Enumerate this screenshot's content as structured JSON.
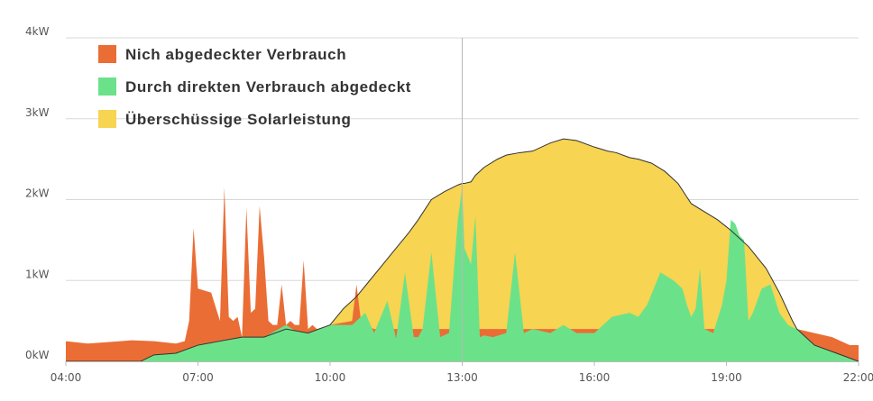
{
  "chart_data": {
    "type": "area",
    "title": "",
    "xlabel": "",
    "ylabel": "",
    "x_ticks": [
      "04:00",
      "07:00",
      "10:00",
      "13:00",
      "16:00",
      "19:00",
      "22:00"
    ],
    "x_range": [
      4,
      22
    ],
    "y_ticks": [
      "0kW",
      "1kW",
      "2kW",
      "3kW",
      "4kW"
    ],
    "ylim": [
      0,
      4
    ],
    "y_unit": "kW",
    "grid": true,
    "cursor_x": 13.0,
    "legend": {
      "position": "top-left"
    },
    "colors": {
      "uncovered": "#ea6d35",
      "direct": "#6be28a",
      "surplus": "#f7d451",
      "solar_line": "#333333",
      "grid": "#d8d8d8",
      "axis": "#bbbbbb"
    },
    "series": [
      {
        "name": "Nich abgedeckter Verbrauch",
        "key": "uncovered",
        "color": "#ea6d35",
        "x": [
          4.0,
          4.5,
          5.0,
          5.5,
          6.0,
          6.5,
          6.7,
          6.8,
          6.9,
          7.0,
          7.3,
          7.5,
          7.6,
          7.7,
          7.8,
          7.9,
          8.0,
          8.1,
          8.2,
          8.3,
          8.4,
          8.5,
          8.6,
          8.7,
          8.8,
          8.9,
          9.0,
          9.1,
          9.2,
          9.3,
          9.4,
          9.5,
          9.6,
          9.7,
          10.0,
          10.5,
          10.6,
          10.7,
          10.8,
          11.0,
          20.6,
          21.0,
          21.4,
          21.8,
          22.0
        ],
        "y": [
          0.25,
          0.22,
          0.24,
          0.26,
          0.25,
          0.22,
          0.25,
          0.5,
          1.65,
          0.9,
          0.85,
          0.5,
          2.15,
          0.55,
          0.5,
          0.55,
          0.3,
          1.9,
          0.6,
          0.65,
          1.92,
          1.3,
          0.5,
          0.45,
          0.45,
          0.95,
          0.45,
          0.5,
          0.45,
          0.45,
          1.25,
          0.4,
          0.45,
          0.4,
          0.45,
          0.5,
          0.95,
          0.5,
          0.45,
          0.4,
          0.4,
          0.35,
          0.3,
          0.2,
          0.2
        ]
      },
      {
        "name": "Durch direkten Verbrauch abgedeckt",
        "key": "direct",
        "color": "#6be28a",
        "x": [
          4.0,
          5.7,
          6.0,
          6.5,
          7.0,
          7.5,
          8.0,
          8.5,
          9.0,
          9.2,
          9.5,
          10.0,
          10.5,
          10.8,
          11.0,
          11.3,
          11.5,
          11.7,
          11.9,
          12.0,
          12.1,
          12.3,
          12.5,
          12.7,
          12.9,
          13.0,
          13.05,
          13.2,
          13.3,
          13.4,
          13.5,
          13.7,
          14.0,
          14.2,
          14.4,
          14.6,
          15.0,
          15.3,
          15.6,
          16.0,
          16.4,
          16.8,
          17.0,
          17.2,
          17.5,
          17.8,
          18.0,
          18.1,
          18.2,
          18.3,
          18.4,
          18.5,
          18.7,
          18.9,
          19.0,
          19.1,
          19.2,
          19.3,
          19.4,
          19.5,
          19.6,
          19.8,
          20.0,
          20.2,
          20.4,
          20.5,
          20.6,
          20.8,
          21.0,
          21.5,
          22.0
        ],
        "y": [
          0.0,
          0.0,
          0.08,
          0.1,
          0.2,
          0.25,
          0.3,
          0.3,
          0.45,
          0.38,
          0.35,
          0.45,
          0.45,
          0.6,
          0.35,
          0.75,
          0.28,
          1.1,
          0.3,
          0.3,
          0.4,
          1.35,
          0.3,
          0.35,
          1.75,
          2.15,
          1.4,
          1.2,
          1.8,
          0.3,
          0.32,
          0.3,
          0.35,
          1.35,
          0.35,
          0.4,
          0.35,
          0.45,
          0.35,
          0.35,
          0.55,
          0.6,
          0.55,
          0.7,
          1.1,
          1.0,
          0.9,
          0.7,
          0.55,
          0.65,
          1.15,
          0.4,
          0.35,
          0.7,
          1.0,
          1.75,
          1.7,
          1.55,
          1.5,
          0.5,
          0.6,
          0.9,
          0.95,
          0.6,
          0.45,
          0.42,
          0.4,
          0.3,
          0.2,
          0.1,
          0.0
        ]
      },
      {
        "name": "Überschüssige Solarleistung",
        "key": "surplus",
        "color": "#f7d451",
        "x": [
          4.0,
          5.7,
          6.0,
          6.5,
          7.0,
          7.5,
          8.0,
          8.5,
          9.0,
          9.5,
          10.0,
          10.3,
          10.6,
          10.9,
          11.2,
          11.5,
          11.8,
          12.0,
          12.3,
          12.6,
          12.9,
          13.0,
          13.05,
          13.2,
          13.3,
          13.5,
          13.8,
          14.0,
          14.3,
          14.6,
          15.0,
          15.3,
          15.6,
          16.0,
          16.3,
          16.5,
          16.8,
          17.0,
          17.3,
          17.6,
          17.9,
          18.2,
          18.5,
          18.8,
          19.1,
          19.5,
          19.9,
          20.2,
          20.5,
          20.6,
          20.8,
          21.0,
          21.5,
          22.0
        ],
        "y": [
          0.0,
          0.0,
          0.08,
          0.1,
          0.2,
          0.25,
          0.3,
          0.3,
          0.4,
          0.35,
          0.45,
          0.65,
          0.8,
          1.0,
          1.2,
          1.4,
          1.6,
          1.75,
          2.0,
          2.1,
          2.18,
          2.2,
          2.2,
          2.22,
          2.3,
          2.4,
          2.5,
          2.55,
          2.58,
          2.6,
          2.7,
          2.75,
          2.73,
          2.65,
          2.6,
          2.58,
          2.52,
          2.5,
          2.45,
          2.35,
          2.2,
          1.95,
          1.85,
          1.75,
          1.62,
          1.42,
          1.15,
          0.85,
          0.5,
          0.4,
          0.3,
          0.2,
          0.1,
          0.0
        ]
      }
    ]
  }
}
